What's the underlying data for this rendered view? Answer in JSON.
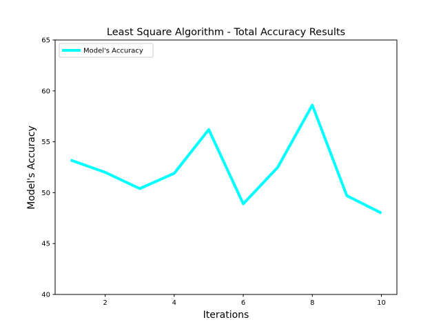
{
  "chart_data": {
    "type": "line",
    "title": "Least Square Algorithm - Total Accuracy Results",
    "xlabel": "Iterations",
    "ylabel": "Model's Accuracy",
    "x": [
      1,
      2,
      3,
      4,
      5,
      6,
      7,
      8,
      9,
      10
    ],
    "series": [
      {
        "name": "Model's Accuracy",
        "color": "#00ffff",
        "values": [
          53.2,
          52.0,
          50.4,
          51.9,
          56.2,
          48.9,
          52.5,
          58.6,
          49.7,
          48.0
        ]
      }
    ],
    "xlim": [
      0.55,
      10.45
    ],
    "ylim": [
      40,
      65
    ],
    "xticks": [
      "2",
      "4",
      "6",
      "8",
      "10"
    ],
    "yticks": [
      "40",
      "45",
      "50",
      "55",
      "60",
      "65"
    ],
    "grid": false,
    "legend_position": "upper-left"
  }
}
